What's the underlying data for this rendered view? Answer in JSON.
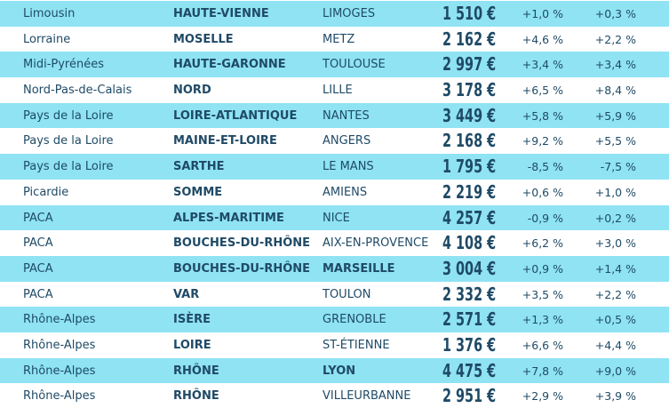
{
  "rows": [
    {
      "region": "Limousin",
      "department": "HAUTE-VIENNE",
      "city": "LIMOGES",
      "city_bold": false,
      "price": "1 510 €",
      "change_1": "+1,0 %",
      "change_2": "+0,3 %"
    },
    {
      "region": "Lorraine",
      "department": "MOSELLE",
      "city": "METZ",
      "city_bold": false,
      "price": "2 162 €",
      "change_1": "+4,6 %",
      "change_2": "+2,2 %"
    },
    {
      "region": "Midi-Pyrénées",
      "department": "HAUTE-GARONNE",
      "city": "TOULOUSE",
      "city_bold": false,
      "price": "2 997 €",
      "change_1": "+3,4 %",
      "change_2": "+3,4 %"
    },
    {
      "region": "Nord-Pas-de-Calais",
      "department": "NORD",
      "city": "LILLE",
      "city_bold": false,
      "price": "3 178 €",
      "change_1": "+6,5 %",
      "change_2": "+8,4 %"
    },
    {
      "region": "Pays de la Loire",
      "department": "LOIRE-ATLANTIQUE",
      "city": "NANTES",
      "city_bold": false,
      "price": "3 449 €",
      "change_1": "+5,8 %",
      "change_2": "+5,9 %"
    },
    {
      "region": "Pays de la Loire",
      "department": "MAINE-ET-LOIRE",
      "city": "ANGERS",
      "city_bold": false,
      "price": "2 168 €",
      "change_1": "+9,2 %",
      "change_2": "+5,5 %"
    },
    {
      "region": "Pays de la Loire",
      "department": "SARTHE",
      "city": "LE MANS",
      "city_bold": false,
      "price": "1 795 €",
      "change_1": "-8,5 %",
      "change_2": "-7,5 %"
    },
    {
      "region": "Picardie",
      "department": "SOMME",
      "city": "AMIENS",
      "city_bold": false,
      "price": "2 219 €",
      "change_1": "+0,6 %",
      "change_2": "+1,0 %"
    },
    {
      "region": "PACA",
      "department": "ALPES-MARITIME",
      "city": "NICE",
      "city_bold": false,
      "price": "4 257 €",
      "change_1": "-0,9 %",
      "change_2": "+0,2 %"
    },
    {
      "region": "PACA",
      "department": "BOUCHES-DU-RHÔNE",
      "city": "AIX-EN-PROVENCE",
      "city_bold": false,
      "price": "4 108 €",
      "change_1": "+6,2 %",
      "change_2": "+3,0 %"
    },
    {
      "region": "PACA",
      "department": "BOUCHES-DU-RHÔNE",
      "city": "MARSEILLE",
      "city_bold": true,
      "price": "3 004 €",
      "change_1": "+0,9 %",
      "change_2": "+1,4 %"
    },
    {
      "region": "PACA",
      "department": "VAR",
      "city": "TOULON",
      "city_bold": false,
      "price": "2 332 €",
      "change_1": "+3,5 %",
      "change_2": "+2,2 %"
    },
    {
      "region": "Rhône-Alpes",
      "department": "ISÈRE",
      "city": "GRENOBLE",
      "city_bold": false,
      "price": "2 571 €",
      "change_1": "+1,3 %",
      "change_2": "+0,5 %"
    },
    {
      "region": "Rhône-Alpes",
      "department": "LOIRE",
      "city": "ST-ÉTIENNE",
      "city_bold": false,
      "price": "1 376 €",
      "change_1": "+6,6 %",
      "change_2": "+4,4 %"
    },
    {
      "region": "Rhône-Alpes",
      "department": "RHÔNE",
      "city": "LYON",
      "city_bold": true,
      "price": "4 475 €",
      "change_1": "+7,8 %",
      "change_2": "+9,0 %"
    },
    {
      "region": "Rhône-Alpes",
      "department": "RHÔNE",
      "city": "VILLEURBANNE",
      "city_bold": false,
      "price": "2 951 €",
      "change_1": "+2,9 %",
      "change_2": "+3,9 %"
    }
  ],
  "colors": {
    "stripe": "#8fe3f3",
    "text": "#1f4a66",
    "background": "#ffffff"
  }
}
